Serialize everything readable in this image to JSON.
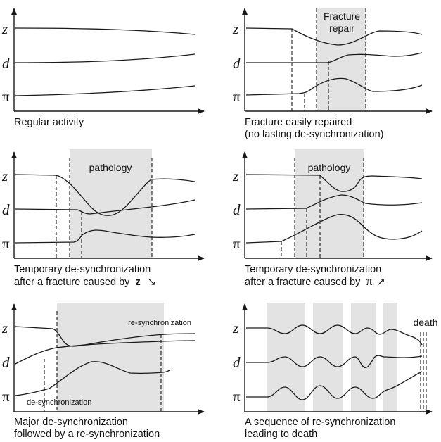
{
  "panels": [
    {
      "caption1": "Regular activity",
      "caption2": ""
    },
    {
      "caption1": "Fracture easily repaired",
      "caption2": "(no lasting de-synchronization)",
      "band_label1": "Fracture",
      "band_label2": "repair"
    },
    {
      "caption1": "Temporary de-synchronization",
      "caption2": "after a fracture caused by",
      "cause": "z",
      "arrow": "↘",
      "band_label1": "pathology"
    },
    {
      "caption1": "Temporary de-synchronization",
      "caption2": "after a fracture caused by",
      "cause": "π",
      "arrow": "↗",
      "band_label1": "pathology"
    },
    {
      "caption1": "Major de-synchronization",
      "caption2": "followed by a re-synchronization",
      "label_a": "re-synchronization",
      "label_b": "de-synchronization"
    },
    {
      "caption1": "A sequence of re-synchronization",
      "caption2": "leading to death",
      "label_a": "death"
    }
  ],
  "symbols": {
    "z": "z",
    "d": "d",
    "pi": "π"
  }
}
